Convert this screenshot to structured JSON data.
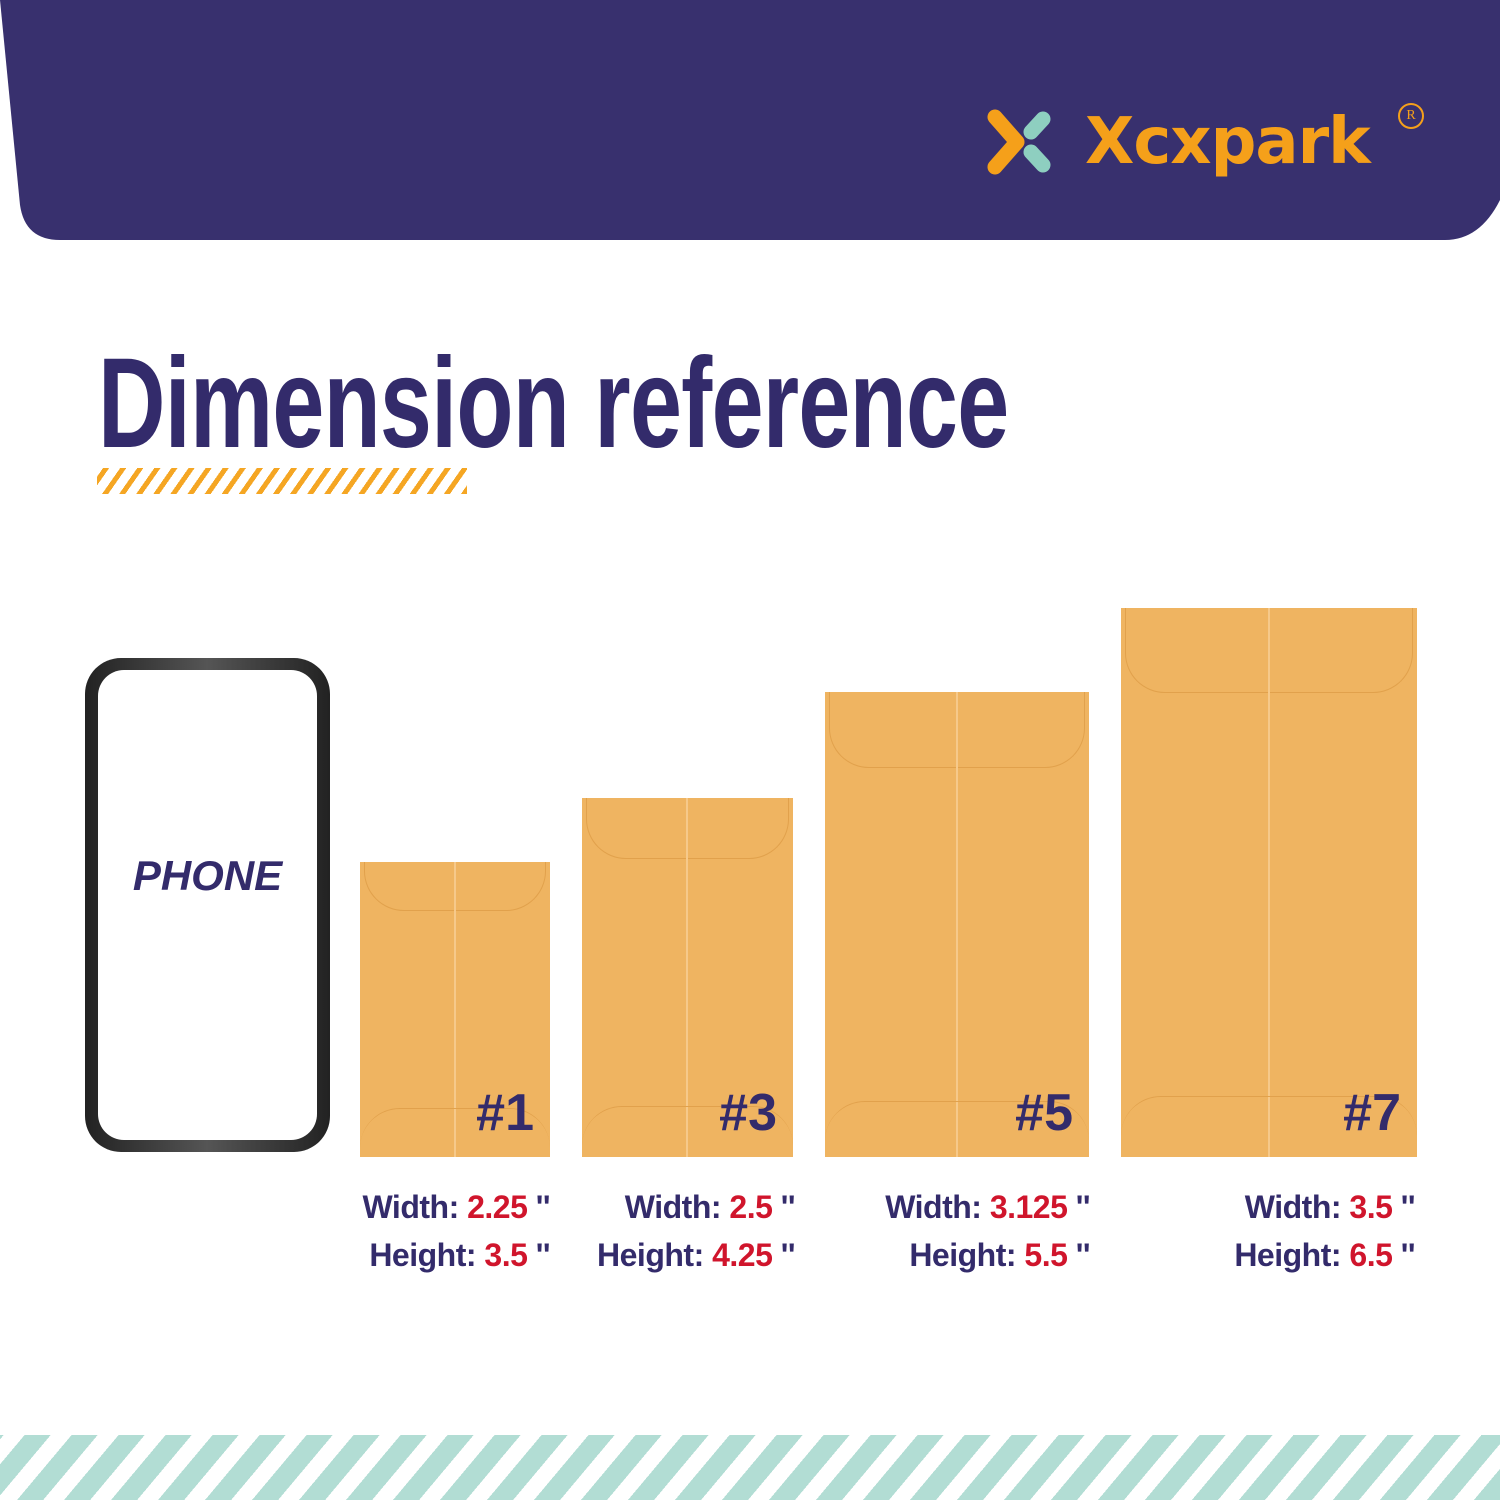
{
  "brand": {
    "name": "Xcxpark",
    "registered_mark": "R",
    "header_color": "#38306e",
    "logo_color": "#f5a01a",
    "logo_accent": "#8ecfc0"
  },
  "title": "Dimension reference",
  "phone": {
    "label": "PHONE"
  },
  "envelopes": [
    {
      "number": "#1",
      "width_label": "Width:",
      "width": "2.25",
      "height_label": "Height:",
      "height": "3.5",
      "unit": "''"
    },
    {
      "number": "#3",
      "width_label": "Width:",
      "width": "2.5",
      "height_label": "Height:",
      "height": "4.25",
      "unit": "''"
    },
    {
      "number": "#5",
      "width_label": "Width:",
      "width": "3.125",
      "height_label": "Height:",
      "height": "5.5",
      "unit": "''"
    },
    {
      "number": "#7",
      "width_label": "Width:",
      "width": "3.5",
      "height_label": "Height:",
      "height": "6.5",
      "unit": "''"
    }
  ],
  "colors": {
    "text": "#332b6b",
    "value": "#d0152c",
    "envelope": "#efb461",
    "stripes": "#b2ddd4"
  }
}
